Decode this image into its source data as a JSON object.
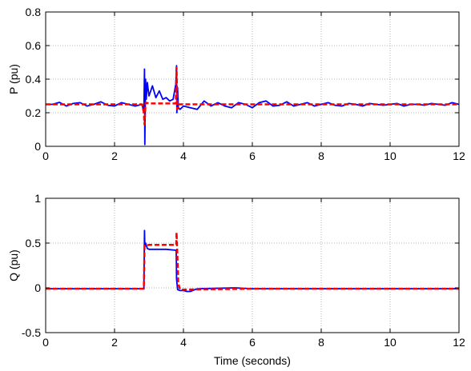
{
  "colors": {
    "measured": "#0000ff",
    "reference": "#ff0000",
    "grid": "#a0a0a0",
    "axes": "#000000"
  },
  "chart_data": [
    {
      "type": "line",
      "ylabel": "P (pu)",
      "xlabel": "",
      "xlim": [
        0,
        12
      ],
      "ylim": [
        0,
        0.8
      ],
      "xticks": [
        "0",
        "2",
        "4",
        "6",
        "8",
        "10",
        "12"
      ],
      "yticks": [
        "0",
        "0.2",
        "0.4",
        "0.6",
        "0.8"
      ],
      "grid": true,
      "series": [
        {
          "line_style": "solid",
          "color": "measured",
          "x": [
            0,
            0.2,
            0.4,
            0.6,
            0.8,
            1.0,
            1.2,
            1.4,
            1.6,
            1.8,
            2.0,
            2.2,
            2.4,
            2.6,
            2.8,
            2.85,
            2.87,
            2.88,
            2.9,
            2.92,
            2.95,
            3.0,
            3.1,
            3.2,
            3.3,
            3.4,
            3.5,
            3.6,
            3.7,
            3.78,
            3.8,
            3.81,
            3.83,
            3.85,
            3.9,
            4.0,
            4.2,
            4.4,
            4.6,
            4.8,
            5.0,
            5.2,
            5.4,
            5.6,
            5.8,
            6.0,
            6.2,
            6.4,
            6.6,
            6.8,
            7.0,
            7.2,
            7.4,
            7.6,
            7.8,
            8.0,
            8.2,
            8.4,
            8.6,
            8.8,
            9.0,
            9.2,
            9.4,
            9.6,
            9.8,
            10.0,
            10.2,
            10.4,
            10.6,
            10.8,
            11.0,
            11.2,
            11.4,
            11.6,
            11.8,
            12.0
          ],
          "y": [
            0.25,
            0.25,
            0.262,
            0.24,
            0.255,
            0.26,
            0.24,
            0.25,
            0.265,
            0.245,
            0.24,
            0.26,
            0.25,
            0.24,
            0.25,
            0.2,
            0.46,
            0.01,
            0.4,
            0.28,
            0.38,
            0.3,
            0.36,
            0.29,
            0.33,
            0.28,
            0.29,
            0.27,
            0.28,
            0.37,
            0.48,
            0.2,
            0.35,
            0.23,
            0.22,
            0.24,
            0.23,
            0.22,
            0.27,
            0.24,
            0.26,
            0.24,
            0.23,
            0.26,
            0.25,
            0.23,
            0.26,
            0.27,
            0.24,
            0.245,
            0.265,
            0.24,
            0.25,
            0.26,
            0.24,
            0.25,
            0.26,
            0.245,
            0.24,
            0.255,
            0.25,
            0.24,
            0.255,
            0.25,
            0.245,
            0.25,
            0.255,
            0.24,
            0.25,
            0.25,
            0.245,
            0.255,
            0.25,
            0.245,
            0.26,
            0.25
          ]
        },
        {
          "line_style": "dashed",
          "color": "reference",
          "x": [
            0,
            2.8,
            2.85,
            2.87,
            2.9,
            3.0,
            3.5,
            3.78,
            3.8,
            3.82,
            3.85,
            4.0,
            6.0,
            8.0,
            10.0,
            12.0
          ],
          "y": [
            0.25,
            0.25,
            0.2,
            0.13,
            0.26,
            0.255,
            0.255,
            0.255,
            0.47,
            0.22,
            0.25,
            0.25,
            0.25,
            0.25,
            0.25,
            0.25
          ]
        }
      ]
    },
    {
      "type": "line",
      "ylabel": "Q (pu)",
      "xlabel": "Time (seconds)",
      "xlim": [
        0,
        12
      ],
      "ylim": [
        -0.5,
        1
      ],
      "xticks": [
        "0",
        "2",
        "4",
        "6",
        "8",
        "10",
        "12"
      ],
      "yticks": [
        "-0.5",
        "0",
        "0.5",
        "1"
      ],
      "grid": true,
      "series": [
        {
          "line_style": "solid",
          "color": "measured",
          "x": [
            0,
            2.85,
            2.86,
            2.87,
            2.88,
            2.9,
            2.95,
            3.0,
            3.1,
            3.3,
            3.5,
            3.79,
            3.8,
            3.83,
            3.9,
            4.0,
            4.1,
            4.2,
            4.4,
            5.5,
            6.0,
            8.0,
            10.0,
            12.0
          ],
          "y": [
            -0.01,
            -0.01,
            0.3,
            0.64,
            0.46,
            0.5,
            0.44,
            0.43,
            0.43,
            0.43,
            0.43,
            0.42,
            0.1,
            -0.02,
            -0.03,
            -0.03,
            -0.04,
            -0.04,
            -0.01,
            0.0,
            -0.01,
            -0.01,
            -0.01,
            -0.01
          ]
        },
        {
          "line_style": "dashed",
          "color": "reference",
          "x": [
            0,
            2.85,
            2.87,
            2.9,
            3.0,
            3.5,
            3.79,
            3.8,
            3.82,
            3.85,
            3.9,
            4.0,
            6.0,
            8.0,
            10.0,
            12.0
          ],
          "y": [
            -0.01,
            -0.01,
            0.47,
            0.47,
            0.48,
            0.48,
            0.48,
            0.62,
            0.4,
            0.05,
            -0.02,
            -0.02,
            -0.01,
            -0.01,
            -0.01,
            -0.01
          ]
        }
      ]
    }
  ]
}
